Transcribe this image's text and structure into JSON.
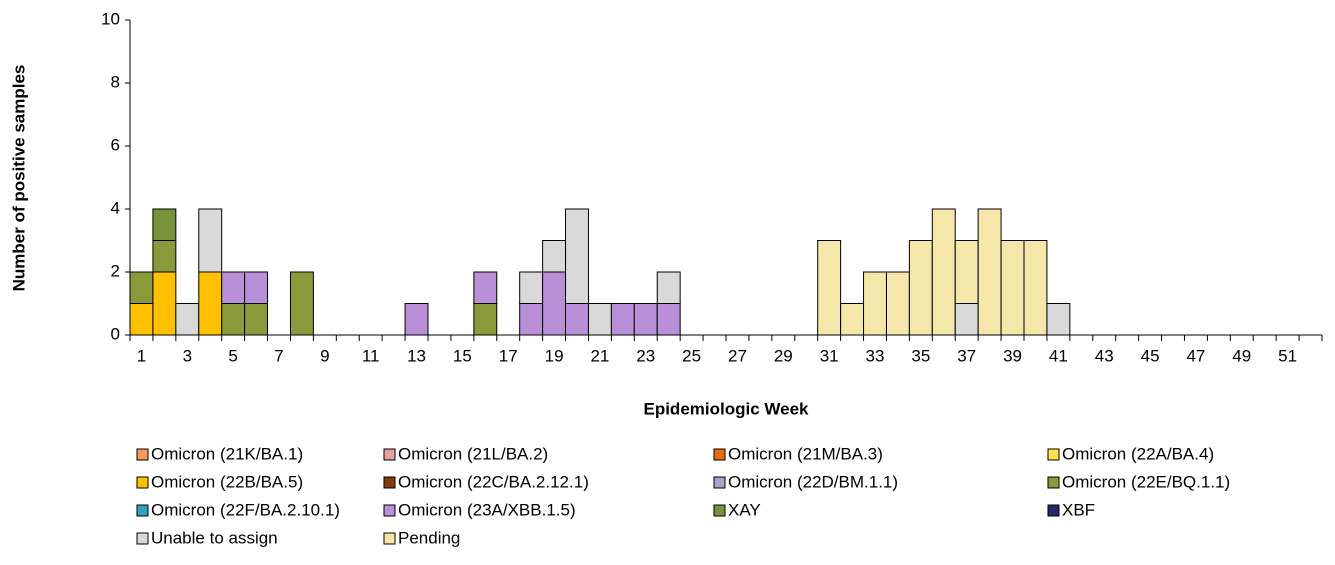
{
  "chart_data": {
    "type": "stacked_bar",
    "x_label": "Epidemiologic Week",
    "y_label": "Number of positive samples",
    "categories": [
      "1",
      null,
      "3",
      null,
      "5",
      null,
      "7",
      null,
      "9",
      null,
      "11",
      null,
      "13",
      null,
      "15",
      null,
      "17",
      null,
      "19",
      null,
      "21",
      null,
      "23",
      null,
      "25",
      null,
      "27",
      null,
      "29",
      null,
      "31",
      null,
      "33",
      null,
      "35",
      null,
      "37",
      null,
      "39",
      null,
      "41",
      null,
      "43",
      null,
      "45",
      null,
      "47",
      null,
      "49",
      null,
      "51",
      null
    ],
    "ylim": [
      0,
      10
    ],
    "yticks": [
      0,
      2,
      4,
      6,
      8,
      10
    ],
    "series": [
      {
        "name": "Omicron (21K/BA.1)",
        "color": "#F79B5B",
        "values": [
          0,
          0,
          0,
          0,
          0,
          0,
          0,
          0,
          0,
          0,
          0,
          0,
          0,
          0,
          0,
          0,
          0,
          0,
          0,
          0,
          0,
          0,
          0,
          0,
          0,
          0,
          0,
          0,
          0,
          0,
          0,
          0,
          0,
          0,
          0,
          0,
          0,
          0,
          0,
          0,
          0,
          0,
          0,
          0,
          0,
          0,
          0,
          0,
          0,
          0,
          0,
          0
        ]
      },
      {
        "name": "Omicron (21L/BA.2)",
        "color": "#E6A0A0",
        "values": [
          0,
          0,
          0,
          0,
          0,
          0,
          0,
          0,
          0,
          0,
          0,
          0,
          0,
          0,
          0,
          0,
          0,
          0,
          0,
          0,
          0,
          0,
          0,
          0,
          0,
          0,
          0,
          0,
          0,
          0,
          0,
          0,
          0,
          0,
          0,
          0,
          0,
          0,
          0,
          0,
          0,
          0,
          0,
          0,
          0,
          0,
          0,
          0,
          0,
          0,
          0,
          0
        ]
      },
      {
        "name": "Omicron (21M/BA.3)",
        "color": "#E46C0A",
        "values": [
          0,
          0,
          0,
          0,
          0,
          0,
          0,
          0,
          0,
          0,
          0,
          0,
          0,
          0,
          0,
          0,
          0,
          0,
          0,
          0,
          0,
          0,
          0,
          0,
          0,
          0,
          0,
          0,
          0,
          0,
          0,
          0,
          0,
          0,
          0,
          0,
          0,
          0,
          0,
          0,
          0,
          0,
          0,
          0,
          0,
          0,
          0,
          0,
          0,
          0,
          0,
          0
        ]
      },
      {
        "name": "Omicron (22A/BA.4)",
        "color": "#FFE24D",
        "values": [
          0,
          0,
          0,
          0,
          0,
          0,
          0,
          0,
          0,
          0,
          0,
          0,
          0,
          0,
          0,
          0,
          0,
          0,
          0,
          0,
          0,
          0,
          0,
          0,
          0,
          0,
          0,
          0,
          0,
          0,
          0,
          0,
          0,
          0,
          0,
          0,
          0,
          0,
          0,
          0,
          0,
          0,
          0,
          0,
          0,
          0,
          0,
          0,
          0,
          0,
          0,
          0
        ]
      },
      {
        "name": "Omicron (22B/BA.5)",
        "color": "#FFC000",
        "values": [
          1,
          2,
          0,
          2,
          0,
          0,
          0,
          0,
          0,
          0,
          0,
          0,
          0,
          0,
          0,
          0,
          0,
          0,
          0,
          0,
          0,
          0,
          0,
          0,
          0,
          0,
          0,
          0,
          0,
          0,
          0,
          0,
          0,
          0,
          0,
          0,
          0,
          0,
          0,
          0,
          0,
          0,
          0,
          0,
          0,
          0,
          0,
          0,
          0,
          0,
          0,
          0
        ]
      },
      {
        "name": "Omicron (22C/BA.2.12.1)",
        "color": "#843C0C",
        "values": [
          0,
          0,
          0,
          0,
          0,
          0,
          0,
          0,
          0,
          0,
          0,
          0,
          0,
          0,
          0,
          0,
          0,
          0,
          0,
          0,
          0,
          0,
          0,
          0,
          0,
          0,
          0,
          0,
          0,
          0,
          0,
          0,
          0,
          0,
          0,
          0,
          0,
          0,
          0,
          0,
          0,
          0,
          0,
          0,
          0,
          0,
          0,
          0,
          0,
          0,
          0,
          0
        ]
      },
      {
        "name": "Omicron (22D/BM.1.1)",
        "color": "#A9A3C9",
        "values": [
          0,
          0,
          0,
          0,
          0,
          0,
          0,
          0,
          0,
          0,
          0,
          0,
          0,
          0,
          0,
          0,
          0,
          0,
          0,
          0,
          0,
          0,
          0,
          0,
          0,
          0,
          0,
          0,
          0,
          0,
          0,
          0,
          0,
          0,
          0,
          0,
          0,
          0,
          0,
          0,
          0,
          0,
          0,
          0,
          0,
          0,
          0,
          0,
          0,
          0,
          0,
          0
        ]
      },
      {
        "name": "Omicron (22E/BQ.1.1)",
        "color": "#8A9A3B",
        "values": [
          1,
          1,
          0,
          0,
          1,
          1,
          0,
          2,
          0,
          0,
          0,
          0,
          0,
          0,
          0,
          1,
          0,
          0,
          0,
          0,
          0,
          0,
          0,
          0,
          0,
          0,
          0,
          0,
          0,
          0,
          0,
          0,
          0,
          0,
          0,
          0,
          0,
          0,
          0,
          0,
          0,
          0,
          0,
          0,
          0,
          0,
          0,
          0,
          0,
          0,
          0,
          0
        ]
      },
      {
        "name": "Omicron (22F/BA.2.10.1)",
        "color": "#31A2C4",
        "values": [
          0,
          0,
          0,
          0,
          0,
          0,
          0,
          0,
          0,
          0,
          0,
          0,
          0,
          0,
          0,
          0,
          0,
          0,
          0,
          0,
          0,
          0,
          0,
          0,
          0,
          0,
          0,
          0,
          0,
          0,
          0,
          0,
          0,
          0,
          0,
          0,
          0,
          0,
          0,
          0,
          0,
          0,
          0,
          0,
          0,
          0,
          0,
          0,
          0,
          0,
          0,
          0
        ]
      },
      {
        "name": "Omicron (23A/XBB.1.5)",
        "color": "#B98FD8",
        "values": [
          0,
          0,
          0,
          0,
          1,
          1,
          0,
          0,
          0,
          0,
          0,
          0,
          1,
          0,
          0,
          1,
          0,
          1,
          2,
          1,
          0,
          1,
          1,
          1,
          0,
          0,
          0,
          0,
          0,
          0,
          0,
          0,
          0,
          0,
          0,
          0,
          0,
          0,
          0,
          0,
          0,
          0,
          0,
          0,
          0,
          0,
          0,
          0,
          0,
          0,
          0,
          0
        ]
      },
      {
        "name": "XAY",
        "color": "#77933C",
        "values": [
          0,
          1,
          0,
          0,
          0,
          0,
          0,
          0,
          0,
          0,
          0,
          0,
          0,
          0,
          0,
          0,
          0,
          0,
          0,
          0,
          0,
          0,
          0,
          0,
          0,
          0,
          0,
          0,
          0,
          0,
          0,
          0,
          0,
          0,
          0,
          0,
          0,
          0,
          0,
          0,
          0,
          0,
          0,
          0,
          0,
          0,
          0,
          0,
          0,
          0,
          0,
          0
        ]
      },
      {
        "name": "XBF",
        "color": "#1F2A6B",
        "values": [
          0,
          0,
          0,
          0,
          0,
          0,
          0,
          0,
          0,
          0,
          0,
          0,
          0,
          0,
          0,
          0,
          0,
          0,
          0,
          0,
          0,
          0,
          0,
          0,
          0,
          0,
          0,
          0,
          0,
          0,
          0,
          0,
          0,
          0,
          0,
          0,
          0,
          0,
          0,
          0,
          0,
          0,
          0,
          0,
          0,
          0,
          0,
          0,
          0,
          0,
          0,
          0
        ]
      },
      {
        "name": "Unable to assign",
        "color": "#D9D9D9",
        "values": [
          0,
          0,
          1,
          2,
          0,
          0,
          0,
          0,
          0,
          0,
          0,
          0,
          0,
          0,
          0,
          0,
          0,
          1,
          1,
          3,
          1,
          0,
          0,
          1,
          0,
          0,
          0,
          0,
          0,
          0,
          0,
          0,
          0,
          0,
          0,
          0,
          1,
          0,
          0,
          0,
          1,
          0,
          0,
          0,
          0,
          0,
          0,
          0,
          0,
          0,
          0,
          0
        ]
      },
      {
        "name": "Pending",
        "color": "#F5E6AA",
        "values": [
          0,
          0,
          0,
          0,
          0,
          0,
          0,
          0,
          0,
          0,
          0,
          0,
          0,
          0,
          0,
          0,
          0,
          0,
          0,
          0,
          0,
          0,
          0,
          0,
          0,
          0,
          0,
          0,
          0,
          0,
          3,
          1,
          2,
          2,
          3,
          4,
          2,
          4,
          3,
          3,
          0,
          0,
          0,
          0,
          0,
          0,
          0,
          0,
          0,
          0,
          0,
          0
        ]
      }
    ]
  }
}
